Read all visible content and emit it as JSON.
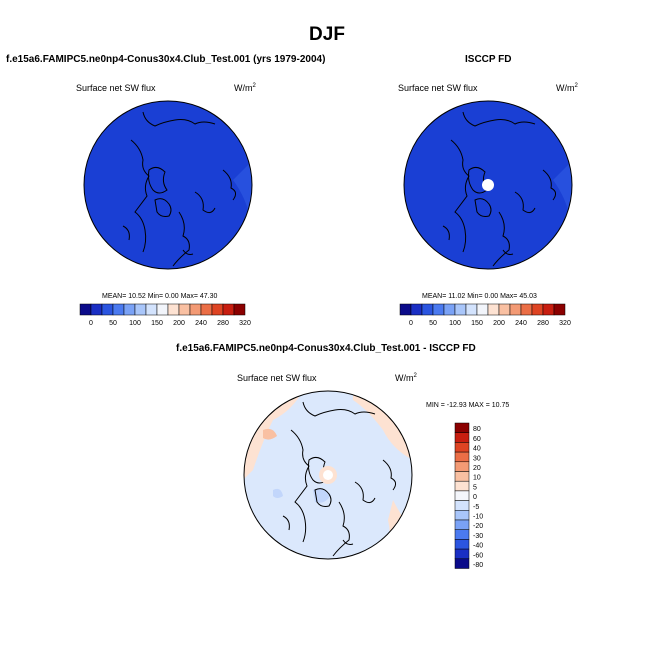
{
  "figure": {
    "title": "DJF",
    "left_panel": {
      "case_title": "f.e15a6.FAMIPC5.ne0np4-Conus30x4.Club_Test.001 (yrs 1979-2004)",
      "variable": "Surface net SW flux",
      "units_base": "W/m",
      "units_exp": "2",
      "stats": "MEAN=  10.52  Min=   0.00  Max=  47.30"
    },
    "right_panel": {
      "case_title": "ISCCP FD",
      "variable": "Surface net SW flux",
      "units_base": "W/m",
      "units_exp": "2",
      "stats": "MEAN=  11.02  Min=   0.00  Max=  45.03"
    },
    "diff_panel": {
      "case_title": "f.e15a6.FAMIPC5.ne0np4-Conus30x4.Club_Test.001 - ISCCP FD",
      "variable": "Surface net SW flux",
      "units_base": "W/m",
      "units_exp": "2",
      "stats": "MIN = -12.93 MAX =  10.75"
    },
    "abs_colorbar": {
      "labels": [
        "0",
        "50",
        "100",
        "150",
        "200",
        "240",
        "280",
        "320"
      ],
      "colors": [
        "#0b0b8a",
        "#1a2fc4",
        "#2b55e0",
        "#4b7af0",
        "#7aa2f6",
        "#a9c6fa",
        "#d3e3fd",
        "#f2f5fb",
        "#fde2d2",
        "#f9c0a2",
        "#f39a74",
        "#eb6e46",
        "#de4423",
        "#c81e10",
        "#8b0000"
      ]
    },
    "diff_colorbar": {
      "labels": [
        "80",
        "60",
        "40",
        "30",
        "20",
        "10",
        "5",
        "0",
        "-5",
        "-10",
        "-20",
        "-30",
        "-40",
        "-60",
        "-80"
      ],
      "colors": [
        "#8b0000",
        "#c81e10",
        "#de4423",
        "#eb6e46",
        "#f39a74",
        "#f9c0a2",
        "#fde2d2",
        "#f4f6fb",
        "#d3e3fd",
        "#a9c6fa",
        "#7aa2f6",
        "#4b7af0",
        "#2b55e0",
        "#1a2fc4",
        "#0b0b8a"
      ]
    }
  }
}
